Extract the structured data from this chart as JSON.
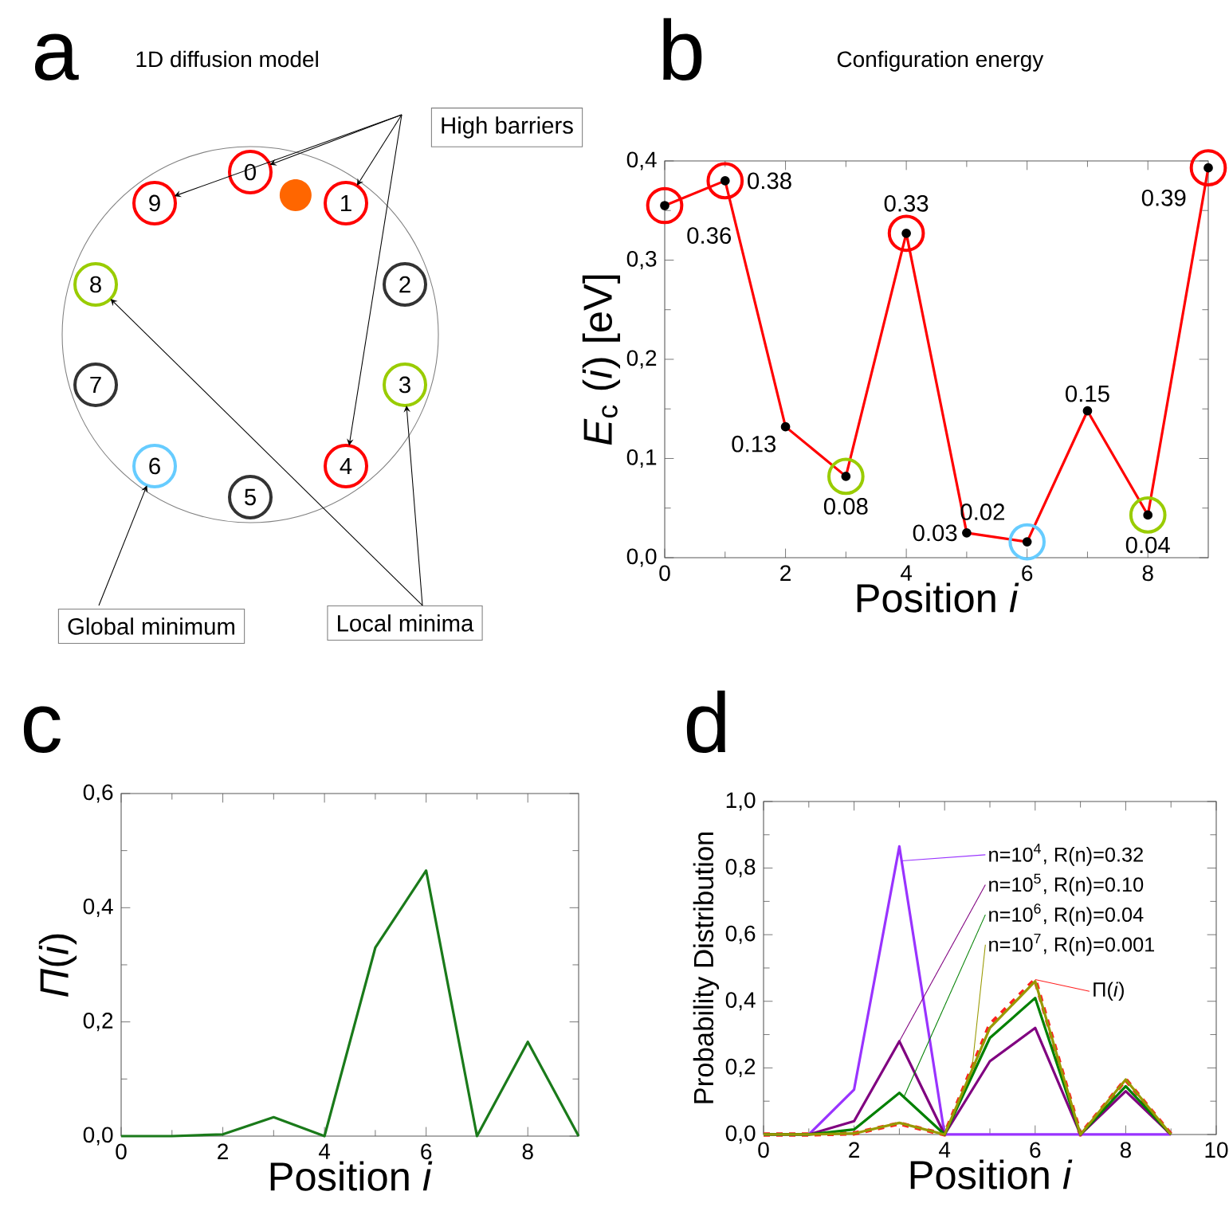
{
  "chart_data": [
    {
      "type": "other",
      "title": "a",
      "subtitle": "1D diffusion model",
      "categories": [
        "0",
        "1",
        "2",
        "3",
        "4",
        "5",
        "6",
        "7",
        "8",
        "9"
      ],
      "colors": [
        "#ff0000",
        "#ff0000",
        "#333333",
        "#99cc00",
        "#ff0000",
        "#333333",
        "#66ccff",
        "#333333",
        "#99cc00",
        "#ff0000"
      ],
      "annotations": [
        "High barriers",
        "Global minimum",
        "Local minima"
      ]
    },
    {
      "type": "line",
      "title": "b",
      "subtitle": "Configuration energy",
      "xlabel": "Position *i*",
      "ylabel": "*E*$_{c}$ (*i*) [eV]",
      "x": [
        0,
        1,
        2,
        3,
        4,
        5,
        6,
        7,
        8,
        9
      ],
      "values": [
        0.355,
        0.38,
        0.132,
        0.082,
        0.327,
        0.025,
        0.016,
        0.148,
        0.043,
        0.393
      ],
      "value_labels": [
        "0.36",
        "0.38",
        "0.13",
        "0.08",
        "0.33",
        "0.03",
        "0.02",
        "0.15",
        "0.04",
        "0.39"
      ],
      "color": "#ff0000",
      "marker": "circle",
      "colors": [
        "#ff0000",
        "#ff0000",
        null,
        "#99cc00",
        "#ff0000",
        null,
        "#66ccff",
        null,
        "#99cc00",
        "#ff0000"
      ],
      "xlim": [
        0,
        9
      ],
      "xticks": [
        0,
        2,
        4,
        6,
        8
      ],
      "ylim": [
        0,
        0.4
      ],
      "yticks": [
        {
          "value": 0,
          "label": "0,0"
        },
        {
          "value": 0.1,
          "label": "0,1"
        },
        {
          "value": 0.2,
          "label": "0,2"
        },
        {
          "value": 0.3,
          "label": "0,3"
        },
        {
          "value": 0.4,
          "label": "0,4"
        }
      ]
    },
    {
      "type": "line",
      "title": "c",
      "xlabel": "Position *i*",
      "ylabel": "*Π*(*i*)",
      "x": [
        0,
        1,
        2,
        3,
        4,
        5,
        6,
        7,
        8,
        9
      ],
      "values": [
        0,
        0,
        0.003,
        0.033,
        0,
        0.33,
        0.465,
        0,
        0.165,
        0
      ],
      "color": "#1a7a1a",
      "xlim": [
        0,
        9
      ],
      "xticks": [
        0,
        2,
        4,
        6,
        8
      ],
      "ylim": [
        0,
        0.6
      ],
      "yticks": [
        {
          "value": 0,
          "label": "0,0"
        },
        {
          "value": 0.2,
          "label": "0,2"
        },
        {
          "value": 0.4,
          "label": "0,4"
        },
        {
          "value": 0.6,
          "label": "0,6"
        }
      ]
    },
    {
      "type": "line",
      "title": "d",
      "xlabel": "Position *i*",
      "ylabel": "Probability Distribution",
      "legend": "top right",
      "x": [
        0,
        1,
        2,
        3,
        4,
        5,
        6,
        7,
        8,
        9
      ],
      "series": [
        {
          "name": "Π(*i*)",
          "color": "#ff2020",
          "line_style": "dashed",
          "values": [
            0,
            0,
            0.003,
            0.033,
            0,
            0.33,
            0.465,
            0,
            0.165,
            0
          ]
        },
        {
          "name": "n=10$^{4}$, R(n)=0.32",
          "color": "#9933ff",
          "values": [
            0,
            0,
            0.135,
            0.865,
            0,
            0,
            0,
            0,
            0,
            0
          ]
        },
        {
          "name": "n=10$^{5}$, R(n)=0.10",
          "color": "#800080",
          "values": [
            0,
            0,
            0.04,
            0.28,
            0,
            0.22,
            0.32,
            0,
            0.13,
            0
          ]
        },
        {
          "name": "n=10$^{6}$, R(n)=0.04",
          "color": "#008000",
          "values": [
            0,
            0,
            0.015,
            0.125,
            0,
            0.29,
            0.41,
            0,
            0.145,
            0
          ]
        },
        {
          "name": "n=10$^{7}$, R(n)=0.001",
          "color": "#999900",
          "values": [
            0,
            0,
            0.003,
            0.035,
            0,
            0.32,
            0.46,
            0,
            0.165,
            0
          ]
        }
      ],
      "xlim": [
        0,
        10
      ],
      "xticks": [
        0,
        2,
        4,
        6,
        8,
        10
      ],
      "ylim": [
        0,
        1
      ],
      "yticks": [
        {
          "value": 0,
          "label": "0,0"
        },
        {
          "value": 0.2,
          "label": "0,2"
        },
        {
          "value": 0.4,
          "label": "0,4"
        },
        {
          "value": 0.6,
          "label": "0,6"
        },
        {
          "value": 0.8,
          "label": "0,8"
        },
        {
          "value": 1,
          "label": "1,0"
        }
      ]
    }
  ]
}
